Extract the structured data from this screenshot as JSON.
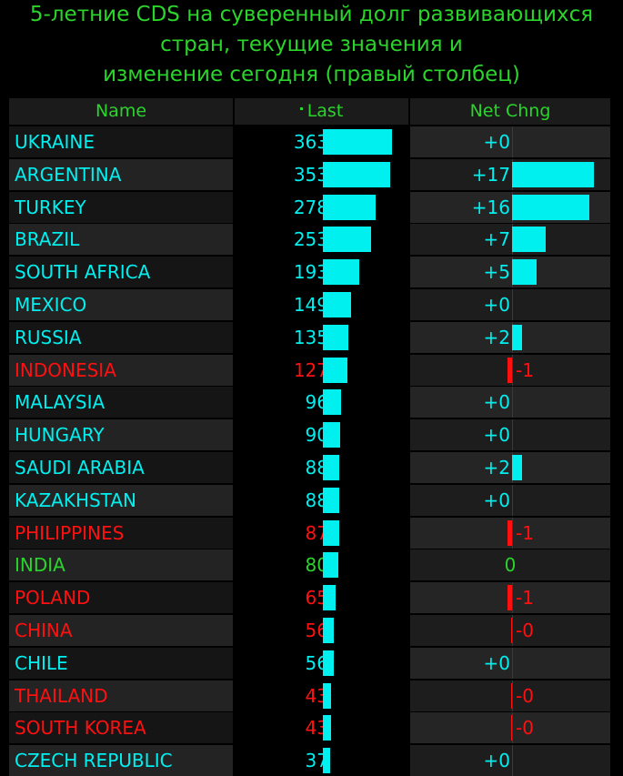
{
  "title_lines": [
    "5-летние CDS на суверенный долг развивающихся",
    "стран, текущие значения и",
    "изменение сегодня (правый столбец)"
  ],
  "columns": {
    "name": "Name",
    "last": "Last",
    "chng": "Net Chng"
  },
  "colors": {
    "title": "#2bd42b",
    "bar": "#00f0f0",
    "positive": "#00efef",
    "negative": "#ff1010",
    "neutral": "#2bd42b"
  },
  "rows": [
    {
      "name": "UKRAINE",
      "last": 363,
      "chg": 0,
      "chg_label": "+0",
      "color": "cyan"
    },
    {
      "name": "ARGENTINA",
      "last": 353,
      "chg": 17,
      "chg_label": "+17",
      "color": "cyan"
    },
    {
      "name": "TURKEY",
      "last": 278,
      "chg": 16,
      "chg_label": "+16",
      "color": "cyan"
    },
    {
      "name": "BRAZIL",
      "last": 253,
      "chg": 7,
      "chg_label": "+7",
      "color": "cyan"
    },
    {
      "name": "SOUTH AFRICA",
      "last": 193,
      "chg": 5,
      "chg_label": "+5",
      "color": "cyan"
    },
    {
      "name": "MEXICO",
      "last": 149,
      "chg": 0,
      "chg_label": "+0",
      "color": "cyan"
    },
    {
      "name": "RUSSIA",
      "last": 135,
      "chg": 2,
      "chg_label": "+2",
      "color": "cyan"
    },
    {
      "name": "INDONESIA",
      "last": 127,
      "chg": -1,
      "chg_label": "-1",
      "color": "red"
    },
    {
      "name": "MALAYSIA",
      "last": 96,
      "chg": 0,
      "chg_label": "+0",
      "color": "cyan"
    },
    {
      "name": "HUNGARY",
      "last": 90,
      "chg": 0,
      "chg_label": "+0",
      "color": "cyan"
    },
    {
      "name": "SAUDI ARABIA",
      "last": 88,
      "chg": 2,
      "chg_label": "+2",
      "color": "cyan"
    },
    {
      "name": "KAZAKHSTAN",
      "last": 88,
      "chg": 0,
      "chg_label": "+0",
      "color": "cyan"
    },
    {
      "name": "PHILIPPINES",
      "last": 87,
      "chg": -1,
      "chg_label": "-1",
      "color": "red"
    },
    {
      "name": "INDIA",
      "last": 80,
      "chg": 0,
      "chg_label": "0",
      "color": "green"
    },
    {
      "name": "POLAND",
      "last": 65,
      "chg": -1,
      "chg_label": "-1",
      "color": "red"
    },
    {
      "name": "CHINA",
      "last": 56,
      "chg": -0.1,
      "chg_label": "-0",
      "color": "red"
    },
    {
      "name": "CHILE",
      "last": 56,
      "chg": 0,
      "chg_label": "+0",
      "color": "cyan"
    },
    {
      "name": "THAILAND",
      "last": 43,
      "chg": -0.1,
      "chg_label": "-0",
      "color": "red"
    },
    {
      "name": "SOUTH KOREA",
      "last": 43,
      "chg": -0.1,
      "chg_label": "-0",
      "color": "red"
    },
    {
      "name": "CZECH REPUBLIC",
      "last": 37,
      "chg": 0,
      "chg_label": "+0",
      "color": "cyan"
    }
  ],
  "chart_data": {
    "type": "table",
    "title": "5-летние CDS на суверенный долг развивающихся стран, текущие значения и изменение сегодня (правый столбец)",
    "columns": [
      "Name",
      "Last",
      "Net Chng"
    ],
    "categories": [
      "UKRAINE",
      "ARGENTINA",
      "TURKEY",
      "BRAZIL",
      "SOUTH AFRICA",
      "MEXICO",
      "RUSSIA",
      "INDONESIA",
      "MALAYSIA",
      "HUNGARY",
      "SAUDI ARABIA",
      "KAZAKHSTAN",
      "PHILIPPINES",
      "INDIA",
      "POLAND",
      "CHINA",
      "CHILE",
      "THAILAND",
      "SOUTH KOREA",
      "CZECH REPUBLIC"
    ],
    "series": [
      {
        "name": "Last",
        "values": [
          363,
          353,
          278,
          253,
          193,
          149,
          135,
          127,
          96,
          90,
          88,
          88,
          87,
          80,
          65,
          56,
          56,
          43,
          43,
          37
        ]
      },
      {
        "name": "Net Chng",
        "values": [
          0,
          17,
          16,
          7,
          5,
          0,
          2,
          -1,
          0,
          0,
          2,
          0,
          -1,
          0,
          -1,
          -0.1,
          0,
          -0.1,
          -0.1,
          0
        ]
      }
    ],
    "legend": "none",
    "grid": false
  }
}
